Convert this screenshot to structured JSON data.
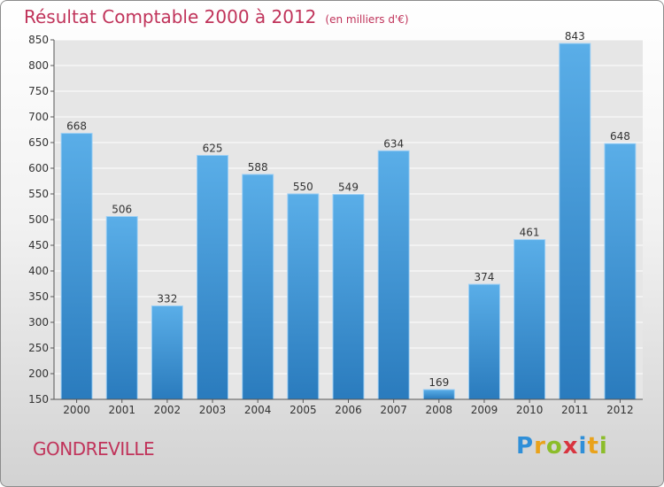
{
  "title": "Résultat Comptable 2000 à 2012",
  "subtitle": "(en milliers d'€)",
  "commune": "GONDREVILLE",
  "logo": {
    "text": "Proxiti",
    "letters": [
      {
        "char": "P",
        "color": "#2f8fd8"
      },
      {
        "char": "r",
        "color": "#e9a21b"
      },
      {
        "char": "o",
        "color": "#8cbd2a"
      },
      {
        "char": "x",
        "color": "#d8343f"
      },
      {
        "char": "i",
        "color": "#2f8fd8"
      },
      {
        "char": "t",
        "color": "#e9a21b"
      },
      {
        "char": "i",
        "color": "#8cbd2a"
      }
    ]
  },
  "chart_data": {
    "type": "bar",
    "title": "Résultat Comptable 2000 à 2012",
    "subtitle": "(en milliers d'€)",
    "categories": [
      "2000",
      "2001",
      "2002",
      "2003",
      "2004",
      "2005",
      "2006",
      "2007",
      "2008",
      "2009",
      "2010",
      "2011",
      "2012"
    ],
    "values": [
      668,
      506,
      332,
      625,
      588,
      550,
      549,
      634,
      169,
      374,
      461,
      843,
      648
    ],
    "ylim": [
      150,
      850
    ],
    "yticks": [
      150,
      200,
      250,
      300,
      350,
      400,
      450,
      500,
      550,
      600,
      650,
      700,
      750,
      800,
      850
    ],
    "grid": true,
    "data_labels": true,
    "bar_color": "#4a9fe0"
  }
}
